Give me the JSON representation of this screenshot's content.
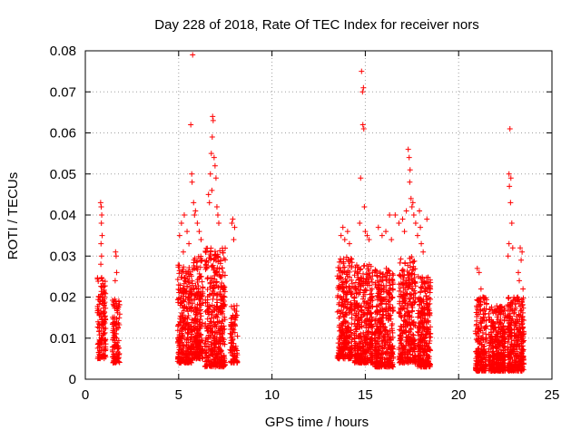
{
  "chart_data": {
    "type": "scatter",
    "title": "Day 228 of 2018, Rate Of TEC Index for receiver nors",
    "xlabel": "GPS time / hours",
    "ylabel": "ROTI / TECUs",
    "xlim": [
      0,
      25
    ],
    "ylim": [
      0,
      0.08
    ],
    "xticks": [
      0,
      5,
      10,
      15,
      20,
      25
    ],
    "xtick_labels": [
      "0",
      "5",
      "10",
      "15",
      "20",
      "25"
    ],
    "yticks": [
      0,
      0.01,
      0.02,
      0.03,
      0.04,
      0.05,
      0.06,
      0.07,
      0.08
    ],
    "ytick_labels": [
      "0",
      "0.01",
      "0.02",
      "0.03",
      "0.04",
      "0.05",
      "0.06",
      "0.07",
      "0.08"
    ],
    "grid": true,
    "marker": "+",
    "color": "#ff0000",
    "clusters": [
      {
        "x_start": 0.65,
        "x_end": 1.1,
        "y_min": 0.005,
        "y_max": 0.025,
        "count": 140
      },
      {
        "x_start": 1.45,
        "x_end": 1.85,
        "y_min": 0.004,
        "y_max": 0.02,
        "count": 110
      },
      {
        "x_start": 4.95,
        "x_end": 5.75,
        "y_min": 0.004,
        "y_max": 0.028,
        "count": 320
      },
      {
        "x_start": 5.8,
        "x_end": 6.3,
        "y_min": 0.005,
        "y_max": 0.03,
        "count": 200
      },
      {
        "x_start": 6.4,
        "x_end": 7.5,
        "y_min": 0.003,
        "y_max": 0.032,
        "count": 420
      },
      {
        "x_start": 7.75,
        "x_end": 8.15,
        "y_min": 0.004,
        "y_max": 0.018,
        "count": 90
      },
      {
        "x_start": 13.5,
        "x_end": 14.3,
        "y_min": 0.005,
        "y_max": 0.03,
        "count": 300
      },
      {
        "x_start": 14.4,
        "x_end": 15.4,
        "y_min": 0.004,
        "y_max": 0.028,
        "count": 400
      },
      {
        "x_start": 15.5,
        "x_end": 16.5,
        "y_min": 0.003,
        "y_max": 0.027,
        "count": 400
      },
      {
        "x_start": 16.8,
        "x_end": 17.7,
        "y_min": 0.004,
        "y_max": 0.03,
        "count": 330
      },
      {
        "x_start": 17.8,
        "x_end": 18.5,
        "y_min": 0.003,
        "y_max": 0.025,
        "count": 280
      },
      {
        "x_start": 20.9,
        "x_end": 21.5,
        "y_min": 0.002,
        "y_max": 0.02,
        "count": 220
      },
      {
        "x_start": 21.6,
        "x_end": 22.5,
        "y_min": 0.002,
        "y_max": 0.018,
        "count": 340
      },
      {
        "x_start": 22.6,
        "x_end": 23.5,
        "y_min": 0.002,
        "y_max": 0.02,
        "count": 330
      }
    ],
    "points": [
      [
        0.82,
        0.043
      ],
      [
        0.85,
        0.042
      ],
      [
        0.88,
        0.04
      ],
      [
        0.86,
        0.038
      ],
      [
        0.9,
        0.035
      ],
      [
        0.84,
        0.033
      ],
      [
        0.87,
        0.03
      ],
      [
        0.83,
        0.028
      ],
      [
        1.62,
        0.031
      ],
      [
        1.65,
        0.03
      ],
      [
        1.68,
        0.026
      ],
      [
        1.6,
        0.024
      ],
      [
        5.05,
        0.035
      ],
      [
        5.15,
        0.038
      ],
      [
        5.3,
        0.04
      ],
      [
        5.45,
        0.036
      ],
      [
        5.55,
        0.033
      ],
      [
        5.25,
        0.031
      ],
      [
        5.65,
        0.062
      ],
      [
        5.7,
        0.05
      ],
      [
        5.75,
        0.079
      ],
      [
        5.72,
        0.048
      ],
      [
        5.8,
        0.043
      ],
      [
        5.85,
        0.04
      ],
      [
        5.9,
        0.041
      ],
      [
        6.0,
        0.038
      ],
      [
        6.1,
        0.036
      ],
      [
        6.2,
        0.034
      ],
      [
        6.6,
        0.045
      ],
      [
        6.7,
        0.05
      ],
      [
        6.75,
        0.055
      ],
      [
        6.8,
        0.059
      ],
      [
        6.82,
        0.064
      ],
      [
        6.85,
        0.063
      ],
      [
        6.9,
        0.054
      ],
      [
        6.95,
        0.052
      ],
      [
        7.0,
        0.049
      ],
      [
        7.05,
        0.042
      ],
      [
        6.78,
        0.046
      ],
      [
        7.1,
        0.04
      ],
      [
        7.15,
        0.038
      ],
      [
        6.65,
        0.043
      ],
      [
        7.85,
        0.038
      ],
      [
        7.9,
        0.039
      ],
      [
        8.0,
        0.037
      ],
      [
        7.95,
        0.034
      ],
      [
        13.7,
        0.035
      ],
      [
        13.8,
        0.037
      ],
      [
        13.9,
        0.034
      ],
      [
        14.05,
        0.036
      ],
      [
        14.15,
        0.033
      ],
      [
        14.8,
        0.075
      ],
      [
        14.85,
        0.07
      ],
      [
        14.9,
        0.071
      ],
      [
        14.87,
        0.062
      ],
      [
        14.92,
        0.061
      ],
      [
        14.75,
        0.049
      ],
      [
        14.95,
        0.042
      ],
      [
        15.0,
        0.036
      ],
      [
        15.1,
        0.035
      ],
      [
        14.7,
        0.038
      ],
      [
        15.2,
        0.034
      ],
      [
        15.7,
        0.037
      ],
      [
        15.9,
        0.035
      ],
      [
        16.1,
        0.036
      ],
      [
        16.3,
        0.04
      ],
      [
        16.4,
        0.034
      ],
      [
        16.6,
        0.04
      ],
      [
        16.8,
        0.038
      ],
      [
        17.0,
        0.039
      ],
      [
        17.1,
        0.036
      ],
      [
        17.2,
        0.041
      ],
      [
        17.3,
        0.056
      ],
      [
        17.35,
        0.054
      ],
      [
        17.4,
        0.051
      ],
      [
        17.38,
        0.048
      ],
      [
        17.45,
        0.044
      ],
      [
        17.5,
        0.042
      ],
      [
        17.55,
        0.043
      ],
      [
        17.6,
        0.04
      ],
      [
        17.7,
        0.038
      ],
      [
        17.9,
        0.041
      ],
      [
        17.8,
        0.035
      ],
      [
        17.95,
        0.037
      ],
      [
        18.0,
        0.033
      ],
      [
        18.1,
        0.031
      ],
      [
        18.3,
        0.039
      ],
      [
        21.0,
        0.027
      ],
      [
        21.1,
        0.026
      ],
      [
        21.2,
        0.022
      ],
      [
        21.3,
        0.02
      ],
      [
        22.75,
        0.061
      ],
      [
        22.7,
        0.05
      ],
      [
        22.8,
        0.049
      ],
      [
        22.72,
        0.047
      ],
      [
        22.78,
        0.043
      ],
      [
        22.85,
        0.038
      ],
      [
        22.7,
        0.033
      ],
      [
        22.65,
        0.03
      ],
      [
        22.9,
        0.032
      ],
      [
        23.3,
        0.032
      ],
      [
        23.4,
        0.031
      ],
      [
        23.35,
        0.029
      ],
      [
        23.2,
        0.026
      ],
      [
        23.25,
        0.024
      ],
      [
        23.45,
        0.022
      ]
    ]
  }
}
